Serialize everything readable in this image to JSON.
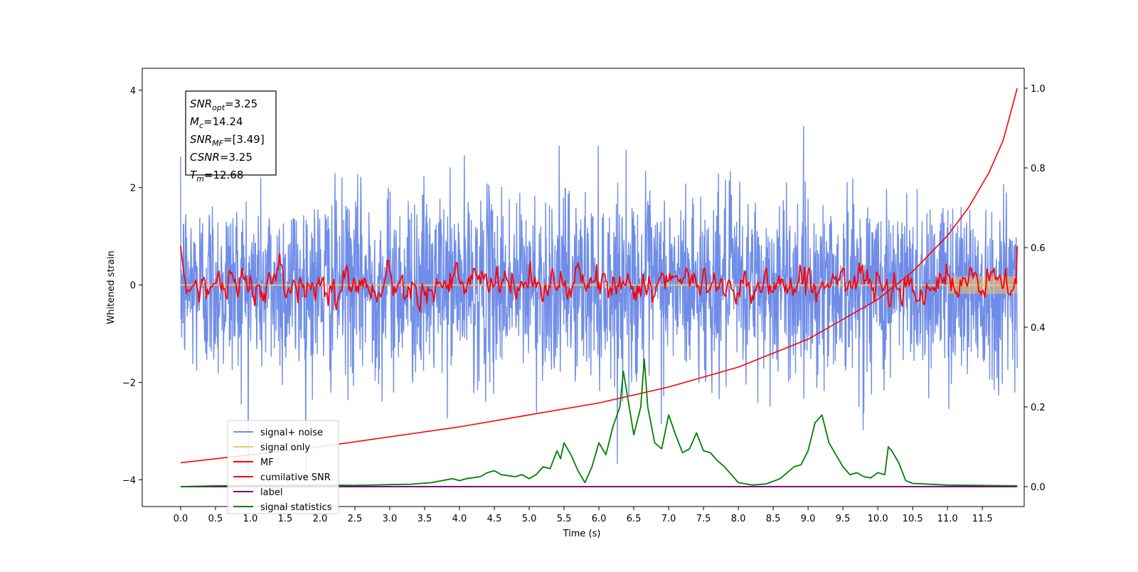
{
  "chart_data": {
    "type": "line",
    "xlabel": "Time (s)",
    "ylabel": "Whitened strain",
    "xlim": [
      -0.55,
      12.1
    ],
    "ylim": [
      -4.55,
      4.45
    ],
    "y2lim": [
      -0.05,
      1.05
    ],
    "x_ticks": [
      "0.0",
      "0.5",
      "1.0",
      "1.5",
      "2.0",
      "2.5",
      "3.0",
      "3.5",
      "4.0",
      "4.5",
      "5.0",
      "5.5",
      "6.0",
      "6.5",
      "7.0",
      "7.5",
      "8.0",
      "8.5",
      "9.0",
      "9.5",
      "10.0",
      "10.5",
      "11.0",
      "11.5"
    ],
    "y_ticks": [
      "4",
      "2",
      "0",
      "−2",
      "−4"
    ],
    "y2_ticks": [
      "1.0",
      "0.8",
      "0.6",
      "0.4",
      "0.2",
      "0.0"
    ],
    "annotations": [
      {
        "sym": "SNR",
        "sub": "opt",
        "value": "=3.25"
      },
      {
        "sym": "M",
        "sub": "c",
        "value": "=14.24"
      },
      {
        "sym": "SNR",
        "sub": "MF",
        "value": "=[3.49]"
      },
      {
        "sym": "CSNR",
        "sub": "",
        "value": "=3.25"
      },
      {
        "sym": "T",
        "sub": "m",
        "value": "=12.68"
      }
    ],
    "colors": {
      "noise": "#6f8de8",
      "signal": "#f5c26b",
      "mf": "#ff0000",
      "csnr": "#ff0000",
      "label": "#800080",
      "stats": "#008000"
    },
    "series": [
      {
        "name": "signal+ noise",
        "axis": "left",
        "description_level": "noise, std ~0.95, x 0.0-12.0"
      },
      {
        "name": "signal only",
        "axis": "left"
      },
      {
        "name": "MF",
        "axis": "left"
      },
      {
        "name": "cumilative SNR",
        "axis": "right",
        "x": [
          0.0,
          1.0,
          2.0,
          3.0,
          4.0,
          5.0,
          6.0,
          7.0,
          8.0,
          9.0,
          10.0,
          10.5,
          11.0,
          11.3,
          11.6,
          11.8,
          12.0
        ],
        "values": [
          0.06,
          0.08,
          0.1,
          0.125,
          0.15,
          0.18,
          0.21,
          0.25,
          0.3,
          0.37,
          0.47,
          0.54,
          0.63,
          0.7,
          0.79,
          0.87,
          1.0
        ]
      },
      {
        "name": "label",
        "axis": "right",
        "x": [
          0.0,
          12.0
        ],
        "values": [
          0.0,
          0.0
        ]
      },
      {
        "name": "signal statistics",
        "axis": "right",
        "x": [
          0.0,
          0.5,
          1.0,
          1.5,
          2.0,
          2.5,
          3.0,
          3.3,
          3.6,
          3.9,
          4.0,
          4.1,
          4.3,
          4.4,
          4.5,
          4.6,
          4.8,
          4.9,
          5.0,
          5.1,
          5.2,
          5.3,
          5.4,
          5.45,
          5.5,
          5.6,
          5.7,
          5.8,
          5.9,
          6.0,
          6.1,
          6.2,
          6.3,
          6.35,
          6.5,
          6.6,
          6.65,
          6.7,
          6.8,
          6.9,
          7.0,
          7.1,
          7.2,
          7.3,
          7.4,
          7.5,
          7.6,
          7.7,
          7.8,
          7.9,
          8.0,
          8.2,
          8.4,
          8.6,
          8.8,
          8.9,
          9.0,
          9.1,
          9.2,
          9.3,
          9.4,
          9.5,
          9.6,
          9.7,
          9.8,
          9.9,
          10.0,
          10.1,
          10.15,
          10.2,
          10.3,
          10.4,
          10.5,
          11.0,
          12.0
        ],
        "values": [
          0.0,
          0.002,
          0.003,
          0.003,
          0.004,
          0.003,
          0.005,
          0.006,
          0.01,
          0.02,
          0.015,
          0.02,
          0.025,
          0.035,
          0.04,
          0.03,
          0.025,
          0.03,
          0.02,
          0.03,
          0.05,
          0.045,
          0.09,
          0.07,
          0.11,
          0.08,
          0.04,
          0.01,
          0.05,
          0.11,
          0.08,
          0.15,
          0.2,
          0.29,
          0.13,
          0.2,
          0.32,
          0.2,
          0.11,
          0.095,
          0.18,
          0.13,
          0.085,
          0.095,
          0.135,
          0.09,
          0.085,
          0.065,
          0.05,
          0.03,
          0.01,
          0.004,
          0.007,
          0.02,
          0.05,
          0.055,
          0.09,
          0.16,
          0.18,
          0.11,
          0.08,
          0.05,
          0.03,
          0.035,
          0.025,
          0.022,
          0.035,
          0.03,
          0.1,
          0.09,
          0.06,
          0.015,
          0.008,
          0.004,
          0.002
        ]
      }
    ]
  }
}
